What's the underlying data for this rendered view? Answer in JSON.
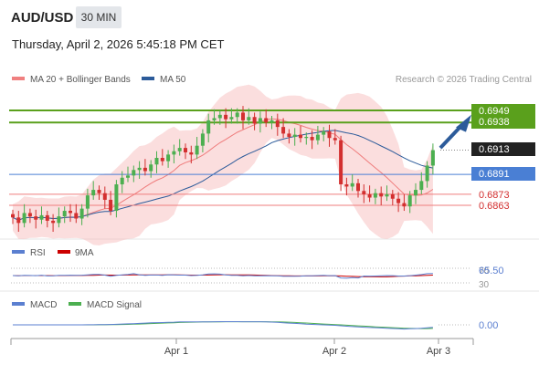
{
  "header": {
    "symbol": "AUD/USD",
    "timeframe": "30 MIN",
    "datetime": "Thursday, April 2, 2026 5:45:18 PM CET"
  },
  "legend": {
    "ma20_label": "MA 20 + Bollinger Bands",
    "ma50_label": "MA 50",
    "credit": "Research © 2026 Trading Central"
  },
  "colors": {
    "candle_up": "#4caf50",
    "candle_down": "#d32f2f",
    "bollinger": "#f7b6b6",
    "ma20": "#ef7b7b",
    "ma50": "#2c5b9a",
    "resistance": "#5aa01c",
    "support": "#ef7d7d",
    "pivot": "#4a7fd4",
    "last_price": "#222222",
    "rsi": "#5b7fd0",
    "rsi_ma": "#cc0000",
    "macd": "#5b7fd0",
    "macd_signal": "#4caf50"
  },
  "levels": [
    {
      "value": "0.6949",
      "kind": "resistance"
    },
    {
      "value": "0.6938",
      "kind": "resistance"
    },
    {
      "value": "0.6913",
      "kind": "last"
    },
    {
      "value": "0.6891",
      "kind": "pivot"
    },
    {
      "value": "0.6873",
      "kind": "support"
    },
    {
      "value": "0.6863",
      "kind": "support"
    }
  ],
  "rsi": {
    "label": "RSI",
    "ma_label": "9MA",
    "value": "65.50",
    "level_70": "70",
    "level_30": "30"
  },
  "macd": {
    "label": "MACD",
    "signal_label": "MACD Signal",
    "value": "0.00"
  },
  "chart_data": {
    "type": "candlestick",
    "x_ticks": [
      "Apr 1",
      "Apr 2",
      "Apr 3"
    ],
    "y_scale": {
      "ref_value_a": 0.6949,
      "ref_value_b": 0.6863
    },
    "close_path": [
      0.6852,
      0.6847,
      0.6856,
      0.6853,
      0.685,
      0.6854,
      0.6849,
      0.6847,
      0.6853,
      0.6858,
      0.6856,
      0.6851,
      0.686,
      0.6872,
      0.6877,
      0.6874,
      0.6868,
      0.6858,
      0.6882,
      0.6888,
      0.689,
      0.6895,
      0.6897,
      0.6894,
      0.69,
      0.6906,
      0.6903,
      0.6909,
      0.6912,
      0.6915,
      0.6911,
      0.6909,
      0.6917,
      0.6928,
      0.694,
      0.6942,
      0.6945,
      0.6941,
      0.6943,
      0.6947,
      0.694,
      0.6943,
      0.6937,
      0.6942,
      0.6938,
      0.694,
      0.6934,
      0.6928,
      0.6925,
      0.6927,
      0.6924,
      0.6925,
      0.6922,
      0.6927,
      0.693,
      0.6924,
      0.6922,
      0.6882,
      0.688,
      0.6883,
      0.6876,
      0.6873,
      0.687,
      0.6874,
      0.6871,
      0.6873,
      0.6869,
      0.6865,
      0.6862,
      0.6872,
      0.6877,
      0.6885,
      0.6899,
      0.6913
    ],
    "projection": {
      "from": 0.6915,
      "to": 0.6941
    }
  }
}
